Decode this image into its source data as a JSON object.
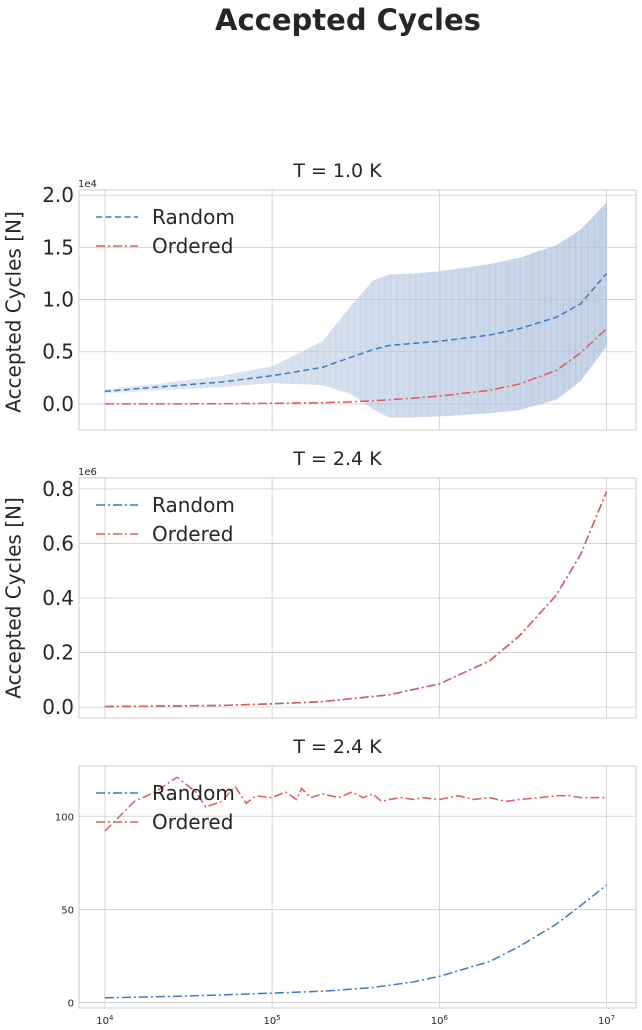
{
  "suptitle": "Accepted Cycles",
  "chart_data": [
    {
      "type": "line",
      "title": "T = 1.0 K",
      "ylabel": "Accepted Cycles [N]",
      "xscale": "log",
      "xlim": [
        7000,
        15000000
      ],
      "ylim": [
        -2500,
        20500
      ],
      "xticks": [
        10000,
        100000,
        1000000,
        10000000
      ],
      "xticklabels_visible": false,
      "yticks": [
        0,
        5000,
        10000,
        15000,
        20000
      ],
      "yticklabels": [
        "0.0",
        "0.5",
        "1.0",
        "1.5",
        "2.0"
      ],
      "offset_label": "1e4",
      "legend": "upper-left",
      "grid": true,
      "x": [
        10000,
        20000,
        50000,
        100000,
        200000,
        300000,
        400000,
        500000,
        700000,
        1000000,
        2000000,
        3000000,
        5000000,
        7000000,
        10000000
      ],
      "series": [
        {
          "name": "Random",
          "linestyle": "dashed",
          "color": "#3a7bbf",
          "values": [
            1200,
            1600,
            2100,
            2700,
            3500,
            4500,
            5200,
            5600,
            5800,
            6000,
            6600,
            7200,
            8300,
            9600,
            12500
          ]
        },
        {
          "name": "Ordered",
          "linestyle": "dashdot",
          "color": "#e05a5a",
          "values": [
            0,
            0,
            20,
            60,
            120,
            200,
            300,
            400,
            550,
            750,
            1300,
            1900,
            3200,
            4900,
            7200
          ]
        }
      ],
      "errorband": {
        "series": "Random",
        "color": "#b0c4de",
        "lower": [
          1000,
          1300,
          1600,
          2000,
          1800,
          900,
          -500,
          -1300,
          -1300,
          -1200,
          -900,
          -600,
          400,
          2200,
          5500
        ],
        "upper": [
          1400,
          1900,
          2700,
          3600,
          6000,
          9500,
          11800,
          12400,
          12500,
          12700,
          13400,
          14000,
          15200,
          16700,
          19300
        ]
      }
    },
    {
      "type": "line",
      "title": "T = 2.4 K",
      "ylabel": "Accepted Cycles [N]",
      "xscale": "log",
      "xlim": [
        7000,
        15000000
      ],
      "ylim": [
        -40000,
        840000
      ],
      "xticks": [
        10000,
        100000,
        1000000,
        10000000
      ],
      "xticklabels_visible": false,
      "yticks": [
        0,
        200000,
        400000,
        600000,
        800000
      ],
      "yticklabels": [
        "0.0",
        "0.2",
        "0.4",
        "0.6",
        "0.8"
      ],
      "offset_label": "1e6",
      "legend": "upper-left",
      "grid": true,
      "x": [
        10000,
        20000,
        50000,
        100000,
        200000,
        500000,
        1000000,
        2000000,
        3000000,
        5000000,
        7000000,
        10000000
      ],
      "series": [
        {
          "name": "Random",
          "linestyle": "dashdot",
          "color": "#3a7bbf",
          "values": [
            2000,
            3500,
            6000,
            12000,
            20000,
            45000,
            85000,
            170000,
            260000,
            410000,
            560000,
            790000
          ]
        },
        {
          "name": "Ordered",
          "linestyle": "dashdot",
          "color": "#e05a5a",
          "values": [
            2000,
            3500,
            6000,
            12000,
            20000,
            45000,
            85000,
            170000,
            260000,
            410000,
            560000,
            790000
          ]
        }
      ]
    },
    {
      "type": "line",
      "title": "T = 2.4 K",
      "ylabel": "",
      "xscale": "log",
      "xlim": [
        7000,
        15000000
      ],
      "ylim": [
        -3,
        127
      ],
      "xticks": [
        10000,
        100000,
        1000000,
        10000000
      ],
      "xticklabels": [
        "10^4",
        "10^5",
        "10^6",
        "10^7"
      ],
      "yticks": [
        0,
        50,
        100
      ],
      "yticklabels": [
        "0",
        "50",
        "100"
      ],
      "legend": "upper-left",
      "grid": true,
      "series": [
        {
          "name": "Random",
          "linestyle": "dashdot",
          "color": "#3a7bbf",
          "x": [
            10000,
            20000,
            50000,
            100000,
            200000,
            400000,
            700000,
            1000000,
            2000000,
            3000000,
            5000000,
            7000000,
            10000000
          ],
          "values": [
            2.5,
            3,
            4,
            5,
            6,
            8,
            11,
            14,
            22,
            30,
            42,
            52,
            63
          ]
        },
        {
          "name": "Ordered",
          "linestyle": "dashdot",
          "color": "#e05a5a",
          "x": [
            10000,
            15000,
            20000,
            27000,
            35000,
            40000,
            50000,
            60000,
            70000,
            80000,
            100000,
            120000,
            140000,
            150000,
            170000,
            200000,
            250000,
            300000,
            350000,
            400000,
            450000,
            500000,
            600000,
            700000,
            800000,
            1000000,
            1300000,
            1600000,
            2000000,
            2500000,
            3000000,
            4000000,
            5000000,
            6000000,
            7000000,
            8000000,
            10000000
          ],
          "values": [
            92,
            108,
            113,
            121,
            113,
            105,
            108,
            116,
            107,
            111,
            110,
            113,
            109,
            115,
            110,
            112,
            110,
            113,
            110,
            112,
            108,
            109,
            110,
            109,
            110,
            109,
            111,
            109,
            110,
            108,
            109,
            110,
            111,
            111,
            110,
            110,
            110
          ]
        }
      ]
    }
  ]
}
